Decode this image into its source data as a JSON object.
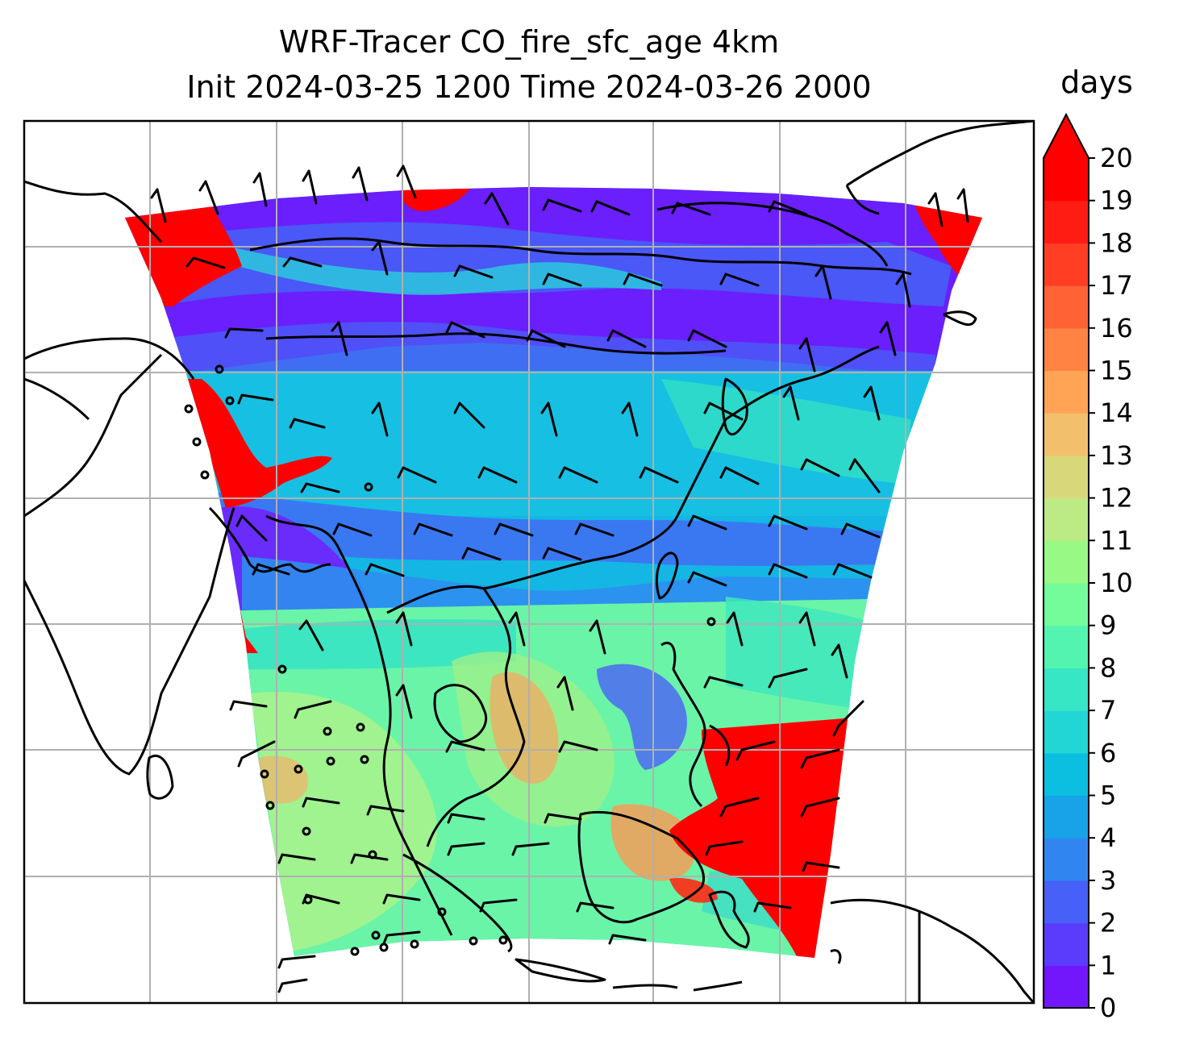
{
  "title": {
    "line1": "WRF-Tracer CO_fire_sfc_age 4km",
    "line2": "Init 2024-03-25 1200 Time 2024-03-26 2000"
  },
  "colorbar": {
    "label": "days",
    "ticks": [
      "0",
      "1",
      "2",
      "3",
      "4",
      "5",
      "6",
      "7",
      "8",
      "9",
      "10",
      "11",
      "12",
      "13",
      "14",
      "15",
      "16",
      "17",
      "18",
      "19",
      "20"
    ],
    "colors": [
      "#7216fb",
      "#5b3cfc",
      "#4660f8",
      "#3185f0",
      "#18a2e8",
      "#0cbee0",
      "#22d6d6",
      "#36e6c4",
      "#52f4b0",
      "#74fb9a",
      "#98f984",
      "#bceb86",
      "#d8d87a",
      "#f2c06c",
      "#ffa455",
      "#ff8443",
      "#ff6235",
      "#ff3e23",
      "#ff1c12",
      "#ff0000"
    ],
    "extend": "max"
  },
  "map": {
    "field_colors": {
      "red": "#ff0000",
      "purple": "#6a1ffc",
      "blue": "#3f6cf4",
      "cyan": "#19c2e4",
      "teal": "#2fdcc8",
      "green": "#63f6a8",
      "light_green": "#a6f78a",
      "orange": "#f8a25a"
    },
    "gridlines": "on",
    "coastlines": "on",
    "wind_barbs": "on"
  }
}
